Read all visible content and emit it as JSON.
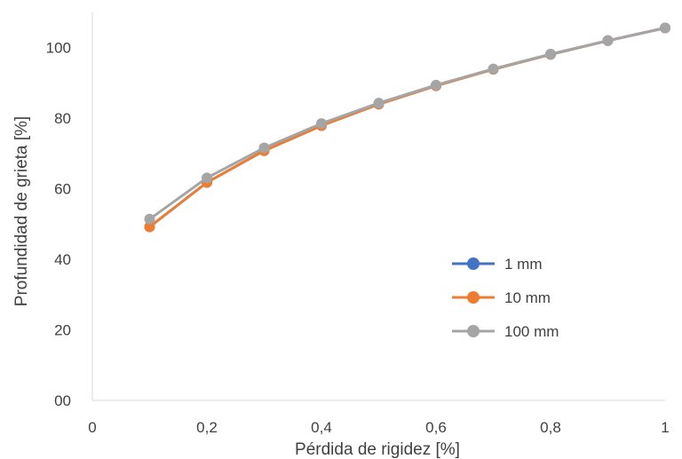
{
  "chart_data": {
    "type": "line",
    "xlabel": "Pérdida de rigidez [%]",
    "ylabel": "Profundidad de grieta [%]",
    "xlim": [
      0,
      1
    ],
    "ylim": [
      0,
      110
    ],
    "x_ticks": [
      0,
      0.2,
      0.4,
      0.6,
      0.8,
      1
    ],
    "x_tick_labels": [
      "0",
      "0,2",
      "0,4",
      "0,6",
      "0,8",
      "1"
    ],
    "y_ticks": [
      0,
      20,
      40,
      60,
      80,
      100
    ],
    "y_tick_labels": [
      "00",
      "20",
      "40",
      "60",
      "80",
      "100"
    ],
    "grid": false,
    "legend_position": "right",
    "x": [
      0.1,
      0.2,
      0.3,
      0.4,
      0.5,
      0.6,
      0.7,
      0.8,
      0.9,
      1.0
    ],
    "series": [
      {
        "name": "1 mm",
        "color": "#4472C4",
        "values": [
          49.2,
          61.8,
          70.8,
          77.9,
          84.0,
          89.2,
          93.9,
          98.1,
          102.0,
          105.6
        ]
      },
      {
        "name": "10 mm",
        "color": "#ED7D31",
        "values": [
          49.2,
          61.8,
          70.8,
          77.9,
          84.0,
          89.2,
          93.9,
          98.1,
          102.0,
          105.6
        ]
      },
      {
        "name": "100 mm",
        "color": "#A5A5A5",
        "values": [
          51.4,
          63.1,
          71.6,
          78.5,
          84.3,
          89.4,
          94.0,
          98.2,
          102.0,
          105.6
        ]
      }
    ]
  }
}
